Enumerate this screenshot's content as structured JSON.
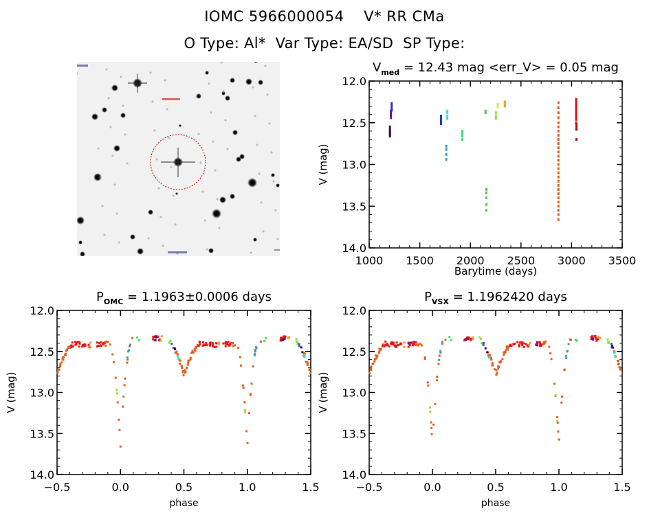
{
  "header": {
    "line1": "IOMC 5966000054    V* RR CMa",
    "line2": "O Type: Al*  Var Type: EA/SD  SP Type:"
  },
  "finder_image": {
    "description": "DSS finder chart, inverted greyscale, target circled in red",
    "target_marker_color": "#cc0000",
    "label_color": "#cc0000"
  },
  "chart_data": [
    {
      "id": "time-series",
      "type": "scatter",
      "title_main": "V",
      "title_sub": "med",
      "title_rest": " = 12.43 mag <err_V> = 0.05 mag",
      "xlabel": "Barytime (days)",
      "ylabel": "V (mag)",
      "xlim": [
        1000,
        3500
      ],
      "ylim": [
        14.0,
        12.0
      ],
      "y_inverted": true,
      "xticks": [
        1000,
        1500,
        2000,
        2500,
        3000,
        3500
      ],
      "xtick_labels": [
        "1000",
        "1500",
        "2000",
        "2500",
        "3000",
        "3500"
      ],
      "yticks": [
        12.0,
        12.5,
        13.0,
        13.5,
        14.0
      ],
      "ytick_labels": [
        "12.0",
        "12.5",
        "13.0",
        "13.5",
        "14.0"
      ],
      "grid": false,
      "groups": [
        {
          "color": "#3a0a4a",
          "x": 1205,
          "y": [
            12.55,
            12.58,
            12.6,
            12.62,
            12.64,
            12.66
          ]
        },
        {
          "color": "#5a1aa0",
          "x": 1215,
          "y": [
            12.36,
            12.38,
            12.4,
            12.42,
            12.44
          ]
        },
        {
          "color": "#3a2ad0",
          "x": 1222,
          "y": [
            12.27,
            12.3,
            12.33,
            12.35
          ]
        },
        {
          "color": "#2040b0",
          "x": 1710,
          "y": [
            12.42,
            12.45,
            12.48,
            12.51
          ]
        },
        {
          "color": "#30a0c0",
          "x": 1762,
          "y": [
            12.78,
            12.82,
            12.88,
            12.94
          ]
        },
        {
          "color": "#40d8e8",
          "x": 1772,
          "y": [
            12.36,
            12.38,
            12.42,
            12.45
          ]
        },
        {
          "color": "#30d890",
          "x": 1920,
          "y": [
            12.6,
            12.63,
            12.66,
            12.7
          ]
        },
        {
          "color": "#40d060",
          "x": 2150,
          "y": [
            12.36,
            12.38
          ]
        },
        {
          "color": "#50c848",
          "x": 2158,
          "y": [
            13.3,
            13.34,
            13.4,
            13.48,
            13.55
          ]
        },
        {
          "color": "#90e040",
          "x": 2252,
          "y": [
            12.38,
            12.42,
            12.45
          ]
        },
        {
          "color": "#e8e040",
          "x": 2270,
          "y": [
            12.28,
            12.31
          ]
        },
        {
          "color": "#f0a020",
          "x": 2340,
          "y": [
            12.25,
            12.27,
            12.3
          ]
        },
        {
          "color": "#e06020",
          "x": 2870,
          "y": [
            12.26,
            12.32,
            12.38,
            12.44,
            12.5,
            12.55,
            12.6,
            12.65,
            12.7,
            12.75,
            12.8,
            12.85,
            12.9,
            12.95,
            13.0,
            13.05,
            13.1,
            13.15,
            13.2,
            13.25,
            13.3,
            13.35,
            13.4,
            13.45,
            13.5,
            13.55,
            13.6,
            13.66
          ]
        },
        {
          "color": "#e01010",
          "x": 3045,
          "y": [
            12.22,
            12.25,
            12.28,
            12.31,
            12.34,
            12.37,
            12.4,
            12.43,
            12.46,
            12.5
          ]
        },
        {
          "color": "#a01010",
          "x": 3048,
          "y": [
            12.52,
            12.55,
            12.58,
            12.7
          ]
        }
      ]
    },
    {
      "id": "phase-omc",
      "type": "scatter",
      "title_main": "P",
      "title_sub": "OMC",
      "title_rest": " = 1.1963±0.0006 days",
      "xlabel": "phase",
      "ylabel": "V (mag)",
      "xlim": [
        -0.5,
        1.5
      ],
      "ylim": [
        14.0,
        12.0
      ],
      "y_inverted": true,
      "xticks": [
        -0.5,
        0.0,
        0.5,
        1.0,
        1.5
      ],
      "xtick_labels": [
        "−0.5",
        "0.0",
        "0.5",
        "1.0",
        "1.5"
      ],
      "yticks": [
        12.0,
        12.5,
        13.0,
        13.5,
        14.0
      ],
      "ytick_labels": [
        "12.0",
        "12.5",
        "13.0",
        "13.5",
        "14.0"
      ],
      "grid": false,
      "period_days": 1.1963,
      "lightcurve_model": {
        "max_mag": 12.38,
        "primary_min_mag": 13.65,
        "secondary_min_mag": 12.78,
        "primary_phase": 0.0,
        "secondary_phase": 0.5
      },
      "groups": [
        {
          "color": "#e06020",
          "phases": [
            -0.5,
            -0.48,
            -0.46,
            -0.44,
            -0.42,
            -0.4,
            -0.12,
            -0.1,
            -0.08,
            -0.06,
            -0.05,
            -0.04,
            -0.03,
            -0.02,
            -0.01,
            0.0,
            0.01,
            0.02,
            0.03,
            0.04,
            0.05,
            0.06,
            0.08,
            0.1,
            0.44,
            0.46,
            0.48,
            0.5,
            0.52,
            0.54,
            0.56,
            0.58,
            0.6,
            0.88,
            0.9,
            0.92,
            0.94,
            0.95,
            0.96,
            0.97,
            0.98,
            0.99,
            1.0,
            1.01,
            1.02,
            1.03,
            1.04,
            1.05,
            1.06,
            1.08,
            1.1,
            1.44,
            1.46,
            1.48,
            1.5
          ]
        },
        {
          "color": "#e81818",
          "phases": [
            -0.38,
            -0.35,
            -0.32,
            -0.3,
            -0.28,
            -0.25,
            -0.18,
            -0.16,
            -0.14,
            0.26,
            0.28,
            0.3,
            0.62,
            0.65,
            0.68,
            0.7,
            0.72,
            0.75,
            0.82,
            0.84,
            0.86,
            1.26,
            1.28,
            1.3
          ]
        },
        {
          "color": "#f0a020",
          "phases": [
            -0.23,
            0.77,
            0.32,
            1.32
          ]
        },
        {
          "color": "#40e060",
          "phases": [
            0.14,
            1.14
          ]
        },
        {
          "color": "#2020b0",
          "phases": [
            0.28,
            1.28
          ]
        },
        {
          "color": "#90e040",
          "phases": [
            0.38,
            0.39,
            1.38,
            1.39,
            -0.02,
            0.98
          ]
        },
        {
          "color": "#2060c0",
          "phases": [
            0.41,
            1.41
          ]
        },
        {
          "color": "#3a0a4a",
          "phases": [
            0.43,
            1.43
          ]
        },
        {
          "color": "#40d8c0",
          "phases": [
            0.45,
            1.45
          ]
        },
        {
          "color": "#30a0d0",
          "phases": [
            0.06,
            0.07,
            1.06,
            1.07
          ]
        }
      ]
    },
    {
      "id": "phase-vsx",
      "type": "scatter",
      "title_main": "P",
      "title_sub": "VSX",
      "title_rest": " = 1.1962420 days",
      "xlabel": "phase",
      "ylabel": "V (mag)",
      "xlim": [
        -0.5,
        1.5
      ],
      "ylim": [
        14.0,
        12.0
      ],
      "y_inverted": true,
      "xticks": [
        -0.5,
        0.0,
        0.5,
        1.0,
        1.5
      ],
      "xtick_labels": [
        "−0.5",
        "0.0",
        "0.5",
        "1.0",
        "1.5"
      ],
      "yticks": [
        12.0,
        12.5,
        13.0,
        13.5,
        14.0
      ],
      "ytick_labels": [
        "12.0",
        "12.5",
        "13.0",
        "13.5",
        "14.0"
      ],
      "grid": false,
      "period_days": 1.196242,
      "lightcurve_model": {
        "max_mag": 12.38,
        "primary_min_mag": 13.65,
        "secondary_min_mag": 12.78,
        "primary_phase": 0.0,
        "secondary_phase": 0.5
      },
      "groups": [
        {
          "color": "#e06020",
          "phases": [
            -0.5,
            -0.48,
            -0.46,
            -0.44,
            -0.42,
            -0.4,
            -0.12,
            -0.1,
            -0.08,
            -0.06,
            -0.05,
            -0.04,
            -0.03,
            -0.02,
            -0.01,
            0.0,
            0.01,
            0.02,
            0.03,
            0.04,
            0.05,
            0.06,
            0.08,
            0.1,
            0.44,
            0.46,
            0.48,
            0.5,
            0.52,
            0.54,
            0.56,
            0.58,
            0.6,
            0.88,
            0.9,
            0.92,
            0.94,
            0.95,
            0.96,
            0.97,
            0.98,
            0.99,
            1.0,
            1.01,
            1.02,
            1.03,
            1.04,
            1.05,
            1.06,
            1.08,
            1.1,
            1.44,
            1.46,
            1.48,
            1.5
          ]
        },
        {
          "color": "#e81818",
          "phases": [
            -0.38,
            -0.35,
            -0.32,
            -0.3,
            -0.28,
            -0.25,
            -0.18,
            -0.16,
            -0.14,
            0.26,
            0.28,
            0.3,
            0.62,
            0.65,
            0.68,
            0.7,
            0.72,
            0.75,
            0.82,
            0.84,
            0.86,
            1.26,
            1.28,
            1.3
          ]
        },
        {
          "color": "#f0a020",
          "phases": [
            -0.23,
            0.77,
            0.32,
            1.32
          ]
        },
        {
          "color": "#40e060",
          "phases": [
            0.14,
            1.14
          ]
        },
        {
          "color": "#5a1aa0",
          "phases": [
            -0.18,
            0.82,
            0.27,
            1.27
          ]
        },
        {
          "color": "#90e040",
          "phases": [
            0.38,
            0.39,
            1.38,
            1.39,
            -0.02,
            0.98
          ]
        },
        {
          "color": "#2060c0",
          "phases": [
            0.41,
            1.41
          ]
        },
        {
          "color": "#3a0a4a",
          "phases": [
            0.43,
            1.43
          ]
        },
        {
          "color": "#40d8c0",
          "phases": [
            0.45,
            1.45
          ]
        },
        {
          "color": "#30a0d0",
          "phases": [
            0.06,
            0.07,
            1.06,
            1.07
          ]
        }
      ]
    }
  ]
}
